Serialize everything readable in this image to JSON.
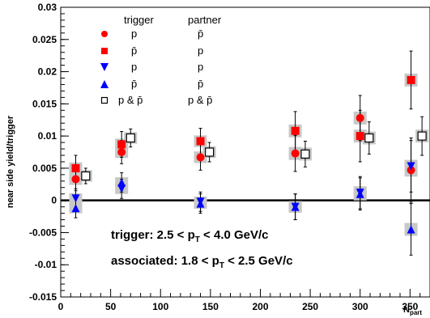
{
  "chart_data": {
    "type": "scatter",
    "xlabel": "N_part",
    "ylabel": "near side yield/trigger",
    "xlim": [
      0,
      370
    ],
    "ylim": [
      -0.015,
      0.03
    ],
    "x_ticks": [
      0,
      50,
      100,
      150,
      200,
      250,
      300,
      350
    ],
    "y_ticks": [
      -0.015,
      -0.01,
      -0.005,
      0,
      0.005,
      0.01,
      0.015,
      0.02,
      0.025,
      0.03
    ],
    "x_tick_labels": [
      "0",
      "50",
      "100",
      "150",
      "200",
      "250",
      "300",
      "350"
    ],
    "y_tick_labels": [
      "-0.015",
      "-0.01",
      "-0.005",
      "0",
      "0.005",
      "0.01",
      "0.015",
      "0.02",
      "0.025",
      "0.03"
    ],
    "reference_line_y": 0,
    "legend": {
      "header_trigger": "trigger",
      "header_partner": "partner",
      "placement": "top-left",
      "rows": [
        {
          "trigger": "p",
          "partner": "p̄"
        },
        {
          "trigger": "p̄",
          "partner": "p"
        },
        {
          "trigger": "p",
          "partner": "p"
        },
        {
          "trigger": "p̄",
          "partner": "p̄"
        },
        {
          "trigger": "p & p̄",
          "partner": "p & p̄"
        }
      ]
    },
    "annotations": {
      "trigger_prefix": "trigger: 2.5 < p",
      "trigger_sub": "T",
      "trigger_suffix": " < 4.0 GeV/c",
      "assoc_prefix": "associated: 1.8 < p",
      "assoc_sub": "T",
      "assoc_suffix": " < 2.5 GeV/c"
    },
    "series": [
      {
        "marker": "circle",
        "color": "#ff0000",
        "points": [
          {
            "x": 15,
            "y": 0.0033,
            "err": 0.0018,
            "sys": 0.0009
          },
          {
            "x": 61,
            "y": 0.0075,
            "err": 0.0018,
            "sys": 0.0009
          },
          {
            "x": 140,
            "y": 0.0067,
            "err": 0.002,
            "sys": 0.0009
          },
          {
            "x": 235,
            "y": 0.0073,
            "err": 0.0028,
            "sys": 0.001
          },
          {
            "x": 300,
            "y": 0.0128,
            "err": 0.0035,
            "sys": 0.001
          },
          {
            "x": 351,
            "y": 0.0047,
            "err": 0.005,
            "sys": 0.001
          }
        ]
      },
      {
        "marker": "square",
        "color": "#ff0000",
        "points": [
          {
            "x": 15,
            "y": 0.005,
            "err": 0.002,
            "sys": 0.0009
          },
          {
            "x": 61,
            "y": 0.0087,
            "err": 0.002,
            "sys": 0.0009
          },
          {
            "x": 140,
            "y": 0.0092,
            "err": 0.002,
            "sys": 0.0009
          },
          {
            "x": 235,
            "y": 0.0108,
            "err": 0.003,
            "sys": 0.001
          },
          {
            "x": 300,
            "y": 0.01,
            "err": 0.004,
            "sys": 0.001
          },
          {
            "x": 351,
            "y": 0.0187,
            "err": 0.0045,
            "sys": 0.001
          }
        ]
      },
      {
        "marker": "triangle-down",
        "color": "#0000ff",
        "points": [
          {
            "x": 15,
            "y": 0.0003,
            "err": 0.0015,
            "sys": 0.0008
          },
          {
            "x": 61,
            "y": 0.0018,
            "err": 0.0015,
            "sys": 0.0008
          },
          {
            "x": 140,
            "y": -0.0002,
            "err": 0.0015,
            "sys": 0.0008
          },
          {
            "x": 235,
            "y": -0.001,
            "err": 0.002,
            "sys": 0.0009
          },
          {
            "x": 300,
            "y": 0.0012,
            "err": 0.0025,
            "sys": 0.001
          },
          {
            "x": 351,
            "y": 0.0053,
            "err": 0.004,
            "sys": 0.001
          }
        ]
      },
      {
        "marker": "triangle-up",
        "color": "#0000ff",
        "points": [
          {
            "x": 15,
            "y": -0.0012,
            "err": 0.0015,
            "sys": 0.0008
          },
          {
            "x": 61,
            "y": 0.0028,
            "err": 0.0015,
            "sys": 0.0008
          },
          {
            "x": 140,
            "y": -0.0005,
            "err": 0.0015,
            "sys": 0.0008
          },
          {
            "x": 235,
            "y": -0.001,
            "err": 0.002,
            "sys": 0.0009
          },
          {
            "x": 300,
            "y": 0.001,
            "err": 0.0025,
            "sys": 0.001
          },
          {
            "x": 351,
            "y": -0.0045,
            "err": 0.004,
            "sys": 0.001
          }
        ]
      },
      {
        "marker": "open-square",
        "color": "#000000",
        "points": [
          {
            "x": 25,
            "y": 0.0038,
            "err": 0.0012,
            "sys": 0.0009
          },
          {
            "x": 70,
            "y": 0.0097,
            "err": 0.0014,
            "sys": 0.0009
          },
          {
            "x": 149,
            "y": 0.0075,
            "err": 0.0015,
            "sys": 0.0009
          },
          {
            "x": 245,
            "y": 0.0072,
            "err": 0.002,
            "sys": 0.001
          },
          {
            "x": 309,
            "y": 0.0097,
            "err": 0.0025,
            "sys": 0.001
          },
          {
            "x": 362,
            "y": 0.01,
            "err": 0.003,
            "sys": 0.001
          }
        ]
      }
    ]
  }
}
